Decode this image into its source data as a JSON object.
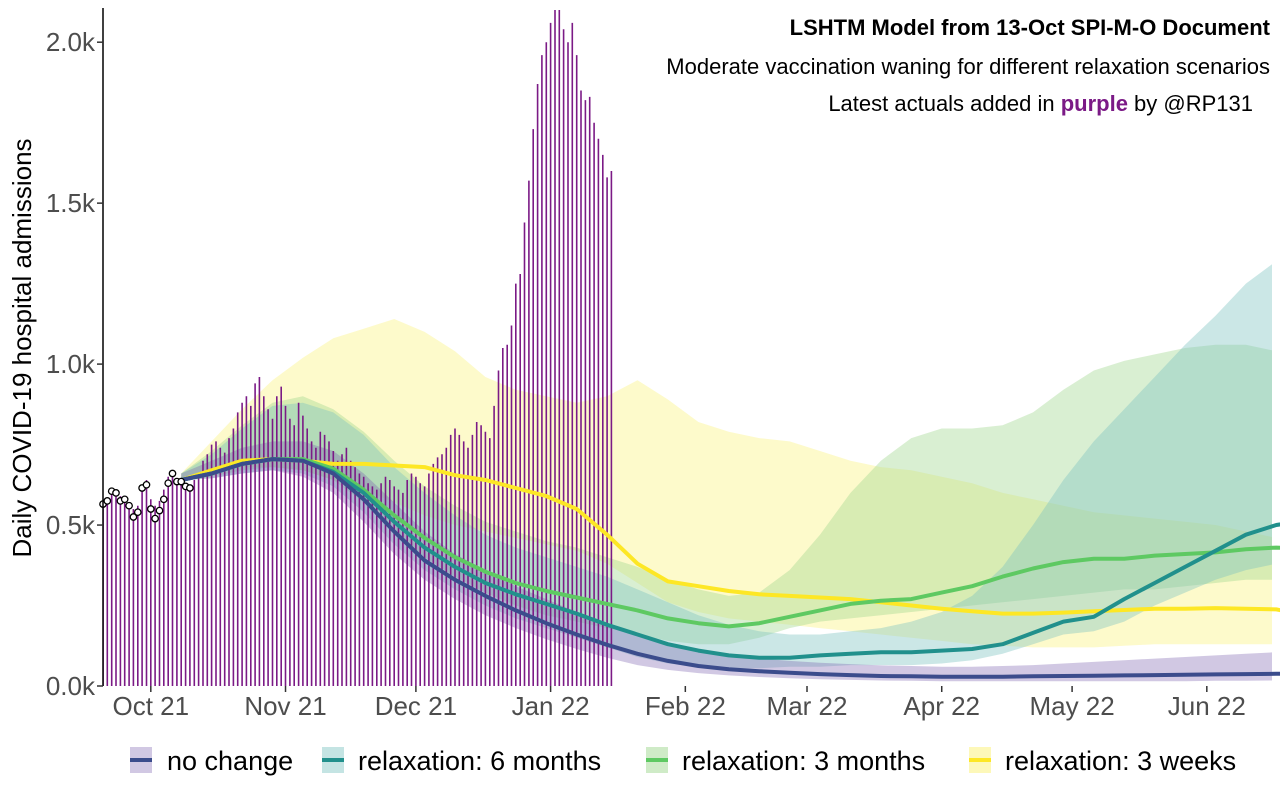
{
  "colors": {
    "actual": "#7b1a86",
    "point_fill": "#ffffff",
    "point_stroke": "#000000",
    "no_change": "#3b4c8c",
    "no_change_band": "#7b62b0",
    "relax_6m": "#21908c",
    "relax_6m_band": "#7cc4c0",
    "relax_3m": "#5ec962",
    "relax_3m_band": "#9fd88f",
    "relax_3w": "#fde725",
    "relax_3w_band": "#fbf38b"
  },
  "chart_data": {
    "type": "area",
    "title_line1": "LSHTM Model from 13-Oct SPI-M-O Document",
    "title_line2": "Moderate vaccination waning for different relaxation scenarios",
    "title_line3_pre": "Latest actuals added in ",
    "title_line3_highlight": "purple",
    "title_line3_post": " by @RP131",
    "ylabel": "Daily COVID-19 hospital admissions",
    "xlabel": "",
    "y_ticks": [
      "0.0k",
      "0.5k",
      "1.0k",
      "1.5k",
      "2.0k"
    ],
    "y_tick_values": [
      0,
      500,
      1000,
      1500,
      2000
    ],
    "x_ticks": [
      "Oct 21",
      "Nov 21",
      "Dec 21",
      "Jan 22",
      "Feb 22",
      "Mar 22",
      "Apr 22",
      "May 22",
      "Jun 22"
    ],
    "x_tick_dates": [
      "2021-10-01",
      "2021-11-01",
      "2021-12-01",
      "2022-01-01",
      "2022-02-01",
      "2022-03-01",
      "2022-04-01",
      "2022-05-01",
      "2022-06-01"
    ],
    "x_range": [
      "2021-09-20",
      "2022-06-16"
    ],
    "ylim": [
      0,
      2100
    ],
    "grid": false,
    "legend_position": "bottom",
    "legend": [
      "no change",
      "relaxation: 6 months",
      "relaxation: 3 months",
      "relaxation: 3 weeks"
    ],
    "observed_points": {
      "start_date": "2021-09-20",
      "values": [
        565,
        575,
        605,
        600,
        575,
        580,
        560,
        525,
        540,
        615,
        625,
        550,
        520,
        545,
        580,
        630,
        660,
        635,
        635,
        620,
        615
      ]
    },
    "actual_admissions": {
      "start_date": "2021-09-20",
      "values": [
        575,
        585,
        600,
        610,
        590,
        580,
        570,
        550,
        560,
        620,
        640,
        580,
        560,
        575,
        610,
        650,
        665,
        640,
        630,
        615,
        620,
        640,
        660,
        700,
        720,
        750,
        760,
        740,
        725,
        770,
        800,
        850,
        880,
        900,
        870,
        940,
        960,
        900,
        860,
        830,
        900,
        930,
        870,
        830,
        810,
        880,
        840,
        800,
        760,
        740,
        790,
        780,
        760,
        730,
        700,
        720,
        740,
        700,
        680,
        660,
        650,
        630,
        620,
        610,
        630,
        650,
        640,
        620,
        610,
        600,
        640,
        660,
        650,
        630,
        620,
        660,
        690,
        710,
        720,
        740,
        780,
        800,
        780,
        760,
        740,
        780,
        820,
        810,
        790,
        770,
        870,
        980,
        1050,
        1060,
        1120,
        1250,
        1280,
        1440,
        1570,
        1730,
        1870,
        1960,
        2000,
        2060,
        2120,
        2120,
        2040,
        2000,
        2060,
        1960,
        1850,
        1820,
        1830,
        1750,
        1700,
        1650,
        1580,
        1600
      ]
    },
    "series": [
      {
        "name": "no change",
        "start_date": "2021-10-08",
        "values": [
          640,
          660,
          690,
          705,
          700,
          660,
          580,
          480,
          390,
          330,
          280,
          235,
          195,
          160,
          128,
          100,
          78,
          62,
          52,
          46,
          41,
          37,
          34,
          31,
          30,
          29,
          29,
          29,
          30,
          31,
          32,
          33,
          34,
          35,
          36,
          37,
          38,
          38,
          39
        ]
      },
      {
        "name": "relaxation: 6 months",
        "start_date": "2021-10-08",
        "values": [
          640,
          660,
          690,
          705,
          700,
          665,
          600,
          510,
          430,
          370,
          320,
          285,
          255,
          225,
          190,
          160,
          130,
          110,
          95,
          88,
          88,
          95,
          100,
          105,
          105,
          110,
          115,
          130,
          165,
          200,
          215,
          270,
          320,
          370,
          420,
          470,
          500,
          515,
          520
        ]
      },
      {
        "name": "relaxation: 3 months",
        "start_date": "2021-10-08",
        "values": [
          640,
          660,
          690,
          705,
          705,
          675,
          610,
          530,
          460,
          400,
          355,
          320,
          295,
          275,
          255,
          235,
          210,
          195,
          185,
          195,
          215,
          235,
          255,
          265,
          270,
          290,
          310,
          340,
          365,
          385,
          395,
          395,
          405,
          410,
          415,
          425,
          430,
          425,
          405
        ]
      },
      {
        "name": "relaxation: 3 weeks",
        "start_date": "2021-10-08",
        "values": [
          640,
          670,
          700,
          705,
          700,
          690,
          690,
          685,
          680,
          655,
          640,
          615,
          590,
          550,
          470,
          380,
          325,
          310,
          295,
          285,
          280,
          275,
          270,
          260,
          250,
          240,
          232,
          225,
          225,
          228,
          232,
          236,
          240,
          240,
          242,
          240,
          238,
          220,
          205
        ]
      }
    ],
    "bands": [
      {
        "name": "relaxation: 3 weeks",
        "lower": [
          640,
          660,
          680,
          680,
          670,
          640,
          610,
          570,
          530,
          500,
          480,
          460,
          440,
          420,
          380,
          320,
          260,
          230,
          210,
          200,
          190,
          180,
          170,
          160,
          150,
          140,
          130,
          125,
          120,
          120,
          120,
          125,
          130,
          130,
          130,
          130,
          130,
          130,
          130
        ],
        "upper": [
          660,
          760,
          860,
          950,
          1020,
          1080,
          1110,
          1140,
          1100,
          1040,
          960,
          920,
          900,
          880,
          900,
          950,
          890,
          820,
          790,
          770,
          760,
          730,
          700,
          680,
          670,
          650,
          630,
          600,
          580,
          560,
          540,
          530,
          520,
          510,
          500,
          480,
          460,
          440,
          430
        ]
      },
      {
        "name": "relaxation: 3 months",
        "lower": [
          640,
          650,
          670,
          680,
          670,
          640,
          570,
          480,
          400,
          340,
          290,
          250,
          220,
          200,
          180,
          160,
          140,
          130,
          130,
          150,
          180,
          200,
          210,
          220,
          230,
          240,
          250,
          260,
          270,
          280,
          290,
          300,
          300,
          310,
          320,
          330,
          330,
          320,
          310
        ],
        "upper": [
          660,
          730,
          810,
          880,
          900,
          860,
          790,
          700,
          620,
          560,
          510,
          480,
          450,
          430,
          400,
          370,
          330,
          300,
          280,
          290,
          360,
          470,
          600,
          700,
          770,
          800,
          800,
          810,
          850,
          920,
          980,
          1010,
          1030,
          1050,
          1060,
          1060,
          1040,
          1010,
          1000
        ]
      },
      {
        "name": "relaxation: 6 months",
        "lower": [
          640,
          645,
          660,
          670,
          660,
          620,
          540,
          440,
          360,
          300,
          250,
          210,
          180,
          150,
          120,
          90,
          70,
          60,
          55,
          55,
          60,
          60,
          65,
          65,
          65,
          70,
          80,
          100,
          130,
          160,
          170,
          200,
          250,
          290,
          330,
          360,
          380,
          390,
          390
        ],
        "upper": [
          660,
          720,
          800,
          870,
          880,
          850,
          780,
          680,
          600,
          530,
          470,
          430,
          400,
          370,
          340,
          300,
          260,
          220,
          190,
          170,
          160,
          160,
          170,
          180,
          200,
          230,
          280,
          370,
          500,
          640,
          760,
          860,
          960,
          1060,
          1150,
          1250,
          1320,
          1280,
          1150
        ]
      },
      {
        "name": "no change",
        "lower": [
          640,
          645,
          660,
          670,
          650,
          600,
          510,
          410,
          330,
          270,
          220,
          180,
          145,
          115,
          88,
          65,
          50,
          40,
          33,
          28,
          24,
          21,
          19,
          17,
          16,
          15,
          15,
          15,
          15,
          15,
          15,
          15,
          15,
          15,
          16,
          16,
          17,
          17,
          18
        ],
        "upper": [
          660,
          700,
          740,
          760,
          760,
          730,
          660,
          570,
          480,
          410,
          360,
          310,
          270,
          230,
          195,
          160,
          130,
          110,
          95,
          85,
          78,
          72,
          68,
          64,
          62,
          60,
          60,
          62,
          65,
          70,
          75,
          80,
          85,
          90,
          95,
          100,
          105,
          110,
          115
        ]
      }
    ]
  }
}
